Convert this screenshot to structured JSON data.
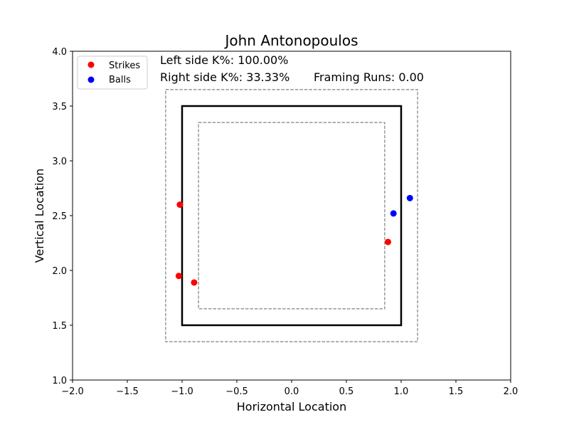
{
  "chart_data": {
    "type": "scatter",
    "title": "John Antonopoulos",
    "xlabel": "Horizontal Location",
    "ylabel": "Vertical Location",
    "xlim": [
      -2.0,
      2.0
    ],
    "ylim": [
      1.0,
      4.0
    ],
    "xticks": [
      -2.0,
      -1.5,
      -1.0,
      -0.5,
      0.0,
      0.5,
      1.0,
      1.5,
      2.0
    ],
    "xtick_labels": [
      "−2.0",
      "−1.5",
      "−1.0",
      "−0.5",
      "0.0",
      "0.5",
      "1.0",
      "1.5",
      "2.0"
    ],
    "yticks": [
      1.0,
      1.5,
      2.0,
      2.5,
      3.0,
      3.5,
      4.0
    ],
    "ytick_labels": [
      "1.0",
      "1.5",
      "2.0",
      "2.5",
      "3.0",
      "3.5",
      "4.0"
    ],
    "grid": false,
    "legend": {
      "position": "top-left",
      "entries": [
        {
          "label": "Strikes",
          "color": "#ff0000"
        },
        {
          "label": "Balls",
          "color": "#0000ff"
        }
      ]
    },
    "series": [
      {
        "name": "Strikes",
        "color": "#ff0000",
        "points": [
          {
            "x": -1.02,
            "y": 2.6
          },
          {
            "x": -1.03,
            "y": 1.95
          },
          {
            "x": -0.89,
            "y": 1.89
          },
          {
            "x": 0.88,
            "y": 2.26
          }
        ]
      },
      {
        "name": "Balls",
        "color": "#0000ff",
        "points": [
          {
            "x": 0.93,
            "y": 2.52
          },
          {
            "x": 1.08,
            "y": 2.66
          }
        ]
      }
    ],
    "zones": [
      {
        "kind": "strike-zone",
        "style": "solid",
        "color": "#000000",
        "x": [
          -1.0,
          1.0
        ],
        "y": [
          1.5,
          3.5
        ]
      },
      {
        "kind": "outer-shadow",
        "style": "dashed",
        "color": "#808080",
        "x": [
          -1.15,
          1.15
        ],
        "y": [
          1.35,
          3.65
        ]
      },
      {
        "kind": "inner-shadow",
        "style": "dashed",
        "color": "#808080",
        "x": [
          -0.85,
          0.85
        ],
        "y": [
          1.65,
          3.35
        ]
      }
    ],
    "annotations": {
      "left_k": "Left side K%: 100.00%",
      "right_k": "Right side K%: 33.33%",
      "framing": "Framing Runs: 0.00"
    }
  }
}
